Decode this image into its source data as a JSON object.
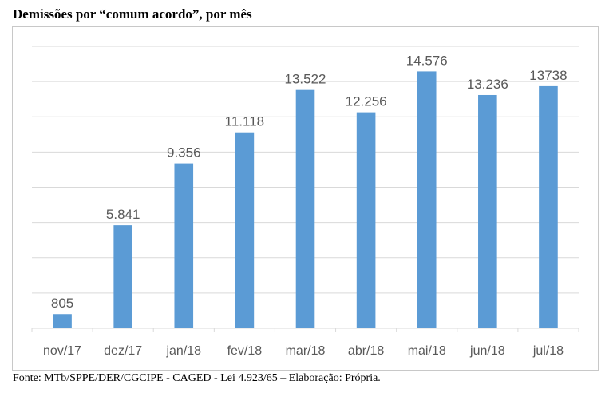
{
  "title": "Demissões por “comum acordo”, por mês",
  "source": "Fonte: MTb/SPPE/DER/CGCIPE - CAGED - Lei 4.923/65 – Elaboração: Própria.",
  "chart_data": {
    "type": "bar",
    "categories": [
      "nov/17",
      "dez/17",
      "jan/18",
      "fev/18",
      "mar/18",
      "abr/18",
      "mai/18",
      "jun/18",
      "jul/18"
    ],
    "values": [
      805,
      5841,
      9356,
      11118,
      13522,
      12256,
      14576,
      13236,
      13738
    ],
    "data_labels": [
      "805",
      "5.841",
      "9.356",
      "11.118",
      "13.522",
      "12.256",
      "14.576",
      "13.236",
      "13738"
    ],
    "ylim": [
      0,
      16000
    ],
    "y_gridline_step": 2000,
    "grid": true,
    "bar_color": "#5b9bd5",
    "gridline_color": "#d9d9d9",
    "label_color": "#595959"
  }
}
